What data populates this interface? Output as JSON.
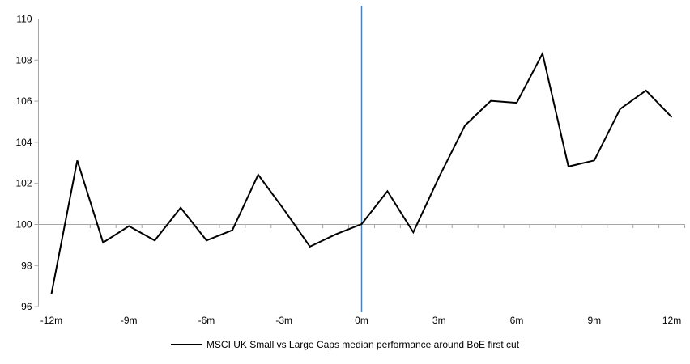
{
  "chart_data": {
    "type": "line",
    "title": "",
    "categories": [
      -12,
      -11,
      -10,
      -9,
      -8,
      -7,
      -6,
      -5,
      -4,
      -3,
      -2,
      -1,
      0,
      1,
      2,
      3,
      4,
      5,
      6,
      7,
      8,
      9,
      10,
      11,
      12
    ],
    "series": [
      {
        "name": "MSCI UK Small vs Large Caps median performance around BoE first cut",
        "color": "#000000",
        "values": [
          96.6,
          103.1,
          99.1,
          99.9,
          99.2,
          100.8,
          99.2,
          99.7,
          102.4,
          100.7,
          98.9,
          99.5,
          100.0,
          101.6,
          99.6,
          102.3,
          104.8,
          106.0,
          105.9,
          108.3,
          102.8,
          103.1,
          105.6,
          106.5,
          105.2
        ]
      }
    ],
    "ylim": [
      96,
      110
    ],
    "y_ticks": [
      96,
      98,
      100,
      102,
      104,
      106,
      108,
      110
    ],
    "x_tick_labels": [
      "-12m",
      "-9m",
      "-6m",
      "-3m",
      "0m",
      "3m",
      "6m",
      "9m",
      "12m"
    ],
    "x_label_every": 3,
    "baseline_value": 100,
    "event_line_x": 0,
    "colors": {
      "series": "#000000",
      "event_line": "#4f81bd",
      "axis": "#a6a6a6",
      "text": "#000000"
    },
    "grid": "baseline-only",
    "legend_position": "bottom"
  }
}
